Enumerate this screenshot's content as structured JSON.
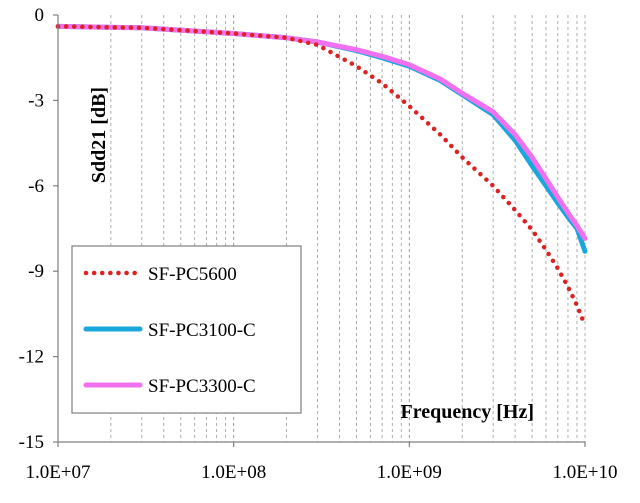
{
  "chart_data": {
    "type": "line",
    "xlabel": "Frequency [Hz]",
    "ylabel": "Sdd21 [dB]",
    "x_scale": "log",
    "xlim": [
      10000000,
      10000000000
    ],
    "ylim": [
      -15,
      0
    ],
    "x_ticks": [
      10000000,
      100000000,
      1000000000,
      10000000000
    ],
    "x_tick_labels": [
      "1.0E+07",
      "1.0E+08",
      "1.0E+09",
      "1.0E+10"
    ],
    "y_ticks": [
      0,
      -3,
      -6,
      -9,
      -12,
      -15
    ],
    "y_tick_labels": [
      "0",
      "-3",
      "-6",
      "-9",
      "-12",
      "-15"
    ],
    "grid": "dashed vertical minor log grid; horizontal grid none",
    "legend_position": "bottom-left",
    "series": [
      {
        "name": "SF-PC5600",
        "color": "#dd2222",
        "style": "dotted",
        "x": [
          10000000,
          30000000,
          100000000,
          200000000,
          300000000,
          500000000,
          700000000,
          1000000000,
          1500000000,
          2000000000,
          3000000000,
          4000000000,
          5000000000,
          6000000000,
          7000000000,
          8000000000,
          9000000000,
          10000000000
        ],
        "y": [
          -0.4,
          -0.45,
          -0.65,
          -0.8,
          -1.05,
          -1.8,
          -2.4,
          -3.2,
          -4.2,
          -5.0,
          -6.0,
          -6.85,
          -7.55,
          -8.25,
          -8.9,
          -9.55,
          -10.2,
          -10.9
        ]
      },
      {
        "name": "SF-PC3100-C",
        "color": "#1aa8dc",
        "style": "solid",
        "x": [
          10000000,
          30000000,
          100000000,
          200000000,
          300000000,
          500000000,
          700000000,
          1000000000,
          1500000000,
          2000000000,
          3000000000,
          4000000000,
          5000000000,
          6000000000,
          7000000000,
          8000000000,
          9000000000,
          10000000000
        ],
        "y": [
          -0.4,
          -0.45,
          -0.65,
          -0.8,
          -0.95,
          -1.25,
          -1.5,
          -1.8,
          -2.3,
          -2.8,
          -3.5,
          -4.4,
          -5.3,
          -6.0,
          -6.6,
          -7.1,
          -7.5,
          -8.3
        ]
      },
      {
        "name": "SF-PC3300-C",
        "color": "#f070f0",
        "style": "solid",
        "x": [
          10000000,
          30000000,
          100000000,
          200000000,
          300000000,
          500000000,
          700000000,
          1000000000,
          1500000000,
          2000000000,
          3000000000,
          4000000000,
          5000000000,
          6000000000,
          7000000000,
          8000000000,
          9000000000,
          10000000000
        ],
        "y": [
          -0.4,
          -0.45,
          -0.65,
          -0.8,
          -0.95,
          -1.22,
          -1.45,
          -1.75,
          -2.25,
          -2.75,
          -3.4,
          -4.2,
          -5.0,
          -5.75,
          -6.4,
          -6.95,
          -7.4,
          -7.85
        ]
      }
    ]
  }
}
